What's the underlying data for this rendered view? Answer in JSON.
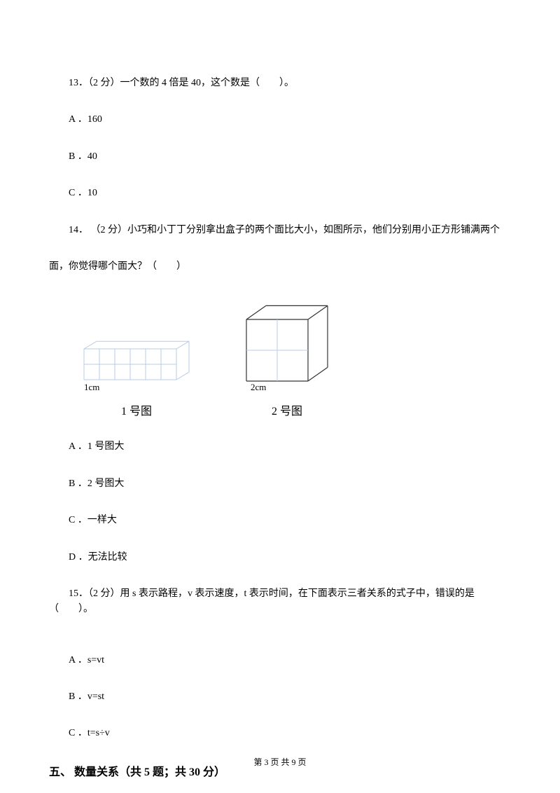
{
  "q13": {
    "text": "13．（2 分）一个数的 4 倍是 40，这个数是（　　）。",
    "options": {
      "a": "A ．160",
      "b": "B ．40",
      "c": "C ．10"
    }
  },
  "q14": {
    "text_line1": "14． （2 分）小巧和小丁丁分别拿出盒子的两个面比大小，如图所示，他们分别用小正方形铺满两个",
    "text_line2": "面，你觉得哪个面大？（　　）",
    "options": {
      "a": "A ．1 号图大",
      "b": "B ．2 号图大",
      "c": "C ．一样大",
      "d": "D ．无法比较"
    },
    "figure1": {
      "dim_label": "1cm",
      "caption": "1 号图",
      "grid_cols": 6,
      "grid_rows": 2,
      "cell_size": 22,
      "depth": 18,
      "stroke_color": "#b8cce4",
      "stroke_width": 1
    },
    "figure2": {
      "dim_label": "2cm",
      "caption": "2 号图",
      "grid_cols": 2,
      "grid_rows": 2,
      "cell_size": 44,
      "depth": 28,
      "stroke_color": "#b8cce4",
      "outline_color": "#333333",
      "stroke_width": 1
    }
  },
  "q15": {
    "text": "15．（2 分）用 s 表示路程，v 表示速度，t 表示时间，在下面表示三者关系的式子中，错误的是（　　）。",
    "options": {
      "a": "A ．s=vt",
      "b": "B ．v=st",
      "c": "C ．t=s÷v"
    }
  },
  "section5": {
    "heading": "五、 数量关系（共 5 题；共 30 分）"
  },
  "footer": {
    "text": "第 3 页 共 9 页"
  }
}
